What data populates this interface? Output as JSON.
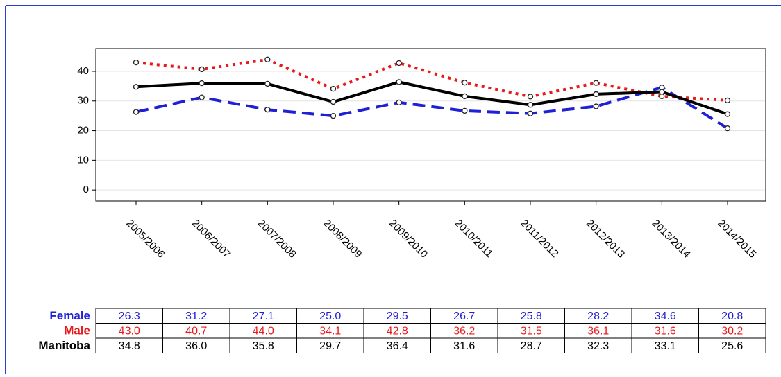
{
  "chart_data": {
    "type": "line",
    "categories": [
      "2005/2006",
      "2006/2007",
      "2007/2008",
      "2008/2009",
      "2009/2010",
      "2010/2011",
      "2011/2012",
      "2012/2013",
      "2013/2014",
      "2014/2015"
    ],
    "series": [
      {
        "name": "Female",
        "color": "#1f1fd6",
        "dash": "dashed",
        "values": [
          26.3,
          31.2,
          27.1,
          25.0,
          29.5,
          26.7,
          25.8,
          28.2,
          34.6,
          20.8
        ],
        "value_labels": [
          "26.3",
          "31.2",
          "27.1",
          "25.0",
          "29.5",
          "26.7",
          "25.8",
          "28.2",
          "34.6",
          "20.8"
        ]
      },
      {
        "name": "Male",
        "color": "#e8191a",
        "dash": "dotted",
        "values": [
          43.0,
          40.7,
          44.0,
          34.1,
          42.8,
          36.2,
          31.5,
          36.1,
          31.6,
          30.2
        ],
        "value_labels": [
          "43.0",
          "40.7",
          "44.0",
          "34.1",
          "42.8",
          "36.2",
          "31.5",
          "36.1",
          "31.6",
          "30.2"
        ]
      },
      {
        "name": "Manitoba",
        "color": "#000000",
        "dash": "solid",
        "values": [
          34.8,
          36.0,
          35.8,
          29.7,
          36.4,
          31.6,
          28.7,
          32.3,
          33.1,
          25.6
        ],
        "value_labels": [
          "34.8",
          "36.0",
          "35.8",
          "29.7",
          "36.4",
          "31.6",
          "28.7",
          "32.3",
          "33.1",
          "25.6"
        ]
      }
    ],
    "ylim": [
      -3.7,
      47.7
    ],
    "yticks": [
      0,
      10,
      20,
      30,
      40
    ],
    "grid": true
  }
}
